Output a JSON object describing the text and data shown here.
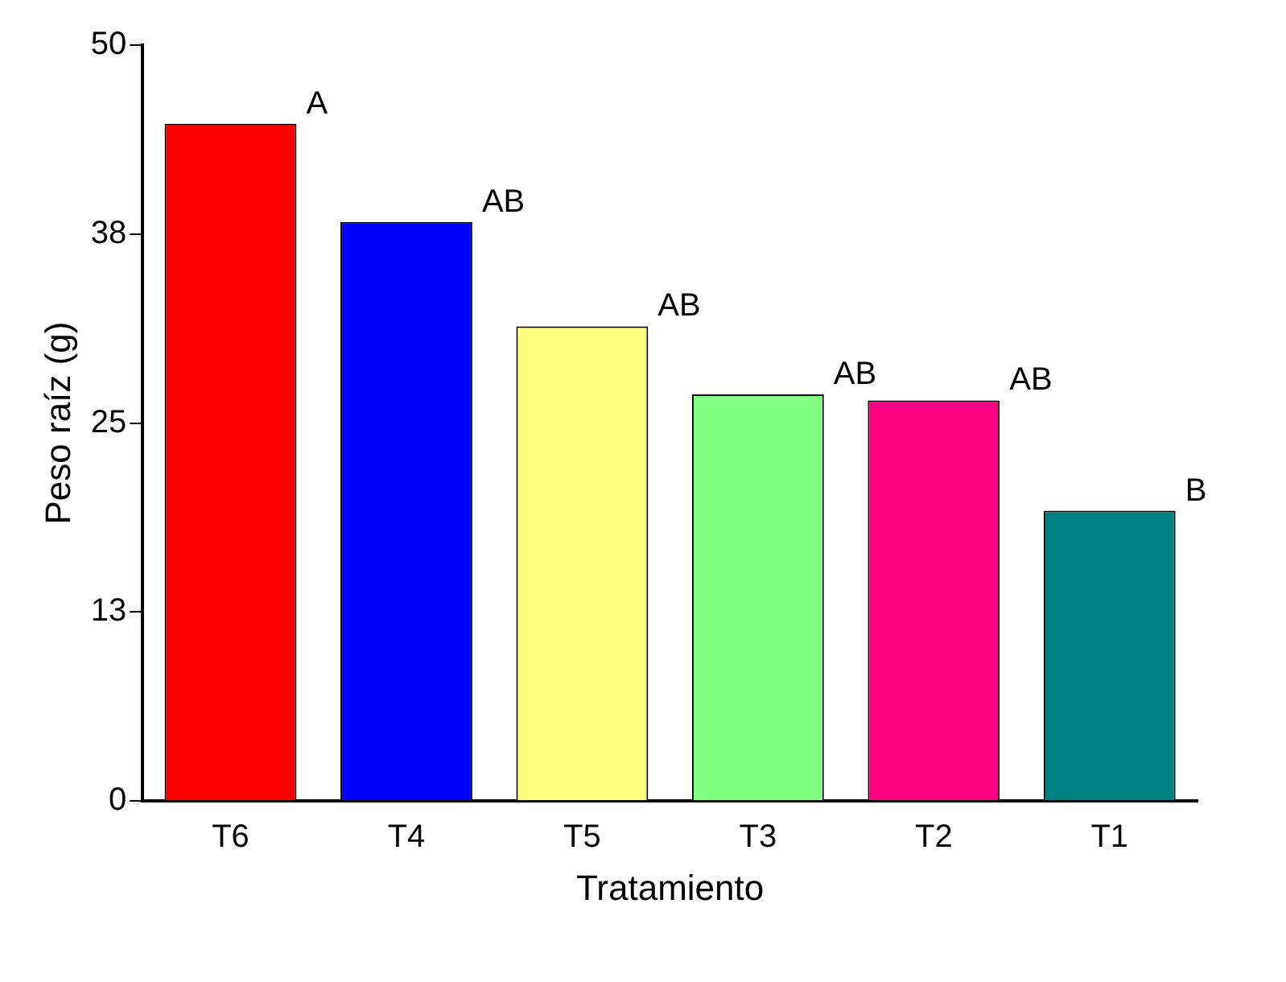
{
  "chart_data": {
    "type": "bar",
    "xlabel": "Tratamiento",
    "ylabel": "Peso raíz (g)",
    "categories": [
      "T6",
      "T4",
      "T5",
      "T3",
      "T2",
      "T1"
    ],
    "values": [
      44.8,
      38.3,
      31.4,
      26.9,
      26.5,
      19.2
    ],
    "colors": [
      "#ff0000",
      "#0000ff",
      "#ffff80",
      "#80ff80",
      "#ff0080",
      "#008080"
    ],
    "ylim": [
      0,
      50
    ],
    "yticks": [
      0,
      {
        "value": 12.5,
        "label": "13"
      },
      25,
      {
        "value": 37.5,
        "label": "38"
      },
      50
    ],
    "grid": false,
    "legend": false,
    "annotations": [
      {
        "text": "A",
        "x": "T6",
        "y": 44.8
      },
      {
        "text": "AB",
        "x": "T4",
        "y": 38.3
      },
      {
        "text": "AB",
        "x": "T5",
        "y": 31.4
      },
      {
        "text": "AB",
        "x": "T3",
        "y": 26.9
      },
      {
        "text": "AB",
        "x": "T2",
        "y": 26.5
      },
      {
        "text": "B",
        "x": "T1",
        "y": 19.2
      }
    ]
  }
}
